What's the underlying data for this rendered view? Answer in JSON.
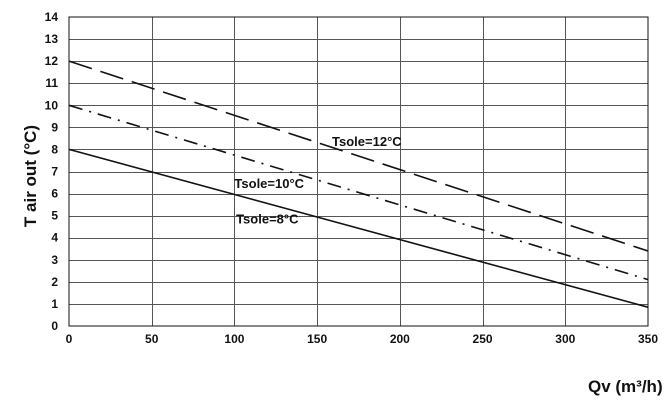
{
  "chart_data": {
    "type": "line",
    "xlabel": "Qv (m³/h)",
    "ylabel": "T air out (°C)",
    "xlim": [
      0,
      350
    ],
    "ylim": [
      0,
      14
    ],
    "x_ticks": [
      0,
      50,
      100,
      150,
      200,
      250,
      300,
      350
    ],
    "y_ticks": [
      0,
      1,
      2,
      3,
      4,
      5,
      6,
      7,
      8,
      9,
      10,
      11,
      12,
      13,
      14
    ],
    "grid": true,
    "series": [
      {
        "name": "Tsole=12°C",
        "x": [
          0,
          350
        ],
        "y": [
          12,
          3.4
        ],
        "line_style": "long-dash"
      },
      {
        "name": "Tsole=10°C",
        "x": [
          0,
          350
        ],
        "y": [
          10,
          2.1
        ],
        "line_style": "dash-dot"
      },
      {
        "name": "Tsole=8°C",
        "x": [
          0,
          350
        ],
        "y": [
          8,
          0.85
        ],
        "line_style": "solid"
      }
    ]
  }
}
